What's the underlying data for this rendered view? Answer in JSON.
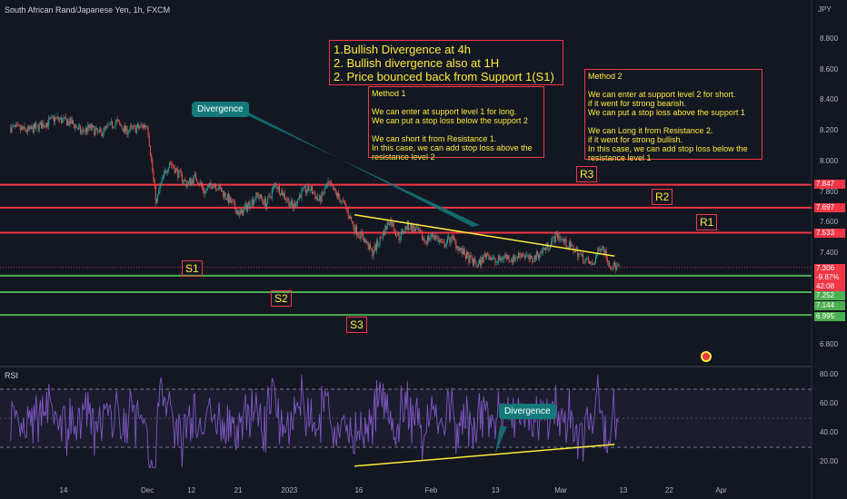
{
  "header": {
    "symbol": "South African Rand/Japanese Yen, 1h, FXCM",
    "currency": "JPY"
  },
  "rsi": {
    "label": "RSI"
  },
  "annotations": {
    "main_box": "1.Bullish Divergence at 4h\n2. Bullish divergence also at 1H\n2. Price bounced back from Support 1(S1)",
    "method1": "Method 1\n\nWe can enter at support level 1 for long.\nWe can put a stop loss below the support 2\n\nWe can short it from Resistance 1.\nIn this case, we can add stop loss above the resistance level 2",
    "method2": "Method 2\n\nWe can enter at support level 2 for short.\nif it went for strong bearish.\nWe can put a stop loss above the support 1\n\nWe can Long it from Resistance 2.\nif it went for strong bullish.\nIn this case, we can add stop loss below the resistance level 1",
    "divergence_price": "Divergence",
    "divergence_rsi": "Divergence",
    "levels": {
      "R1": "R1",
      "R2": "R2",
      "R3": "R3",
      "S1": "S1",
      "S2": "S2",
      "S3": "S3"
    }
  },
  "price_tags": {
    "r3": "7.847",
    "r2": "7.697",
    "r1": "7.533",
    "current": "7.306",
    "change": "-9.87%",
    "countdown": "42:08",
    "s1": "7.252",
    "s2": "7.144",
    "s3": "6.995"
  },
  "colors": {
    "up": "#26a69a",
    "down": "#ef5350",
    "resistance": "#f23645",
    "support": "#4caf50",
    "rsi": "#7e57c2",
    "trend": "#ffeb3b",
    "background": "#131722"
  },
  "icons": {
    "calendar": "economic-event-icon"
  },
  "chart_data": [
    {
      "type": "candlestick",
      "title": "South African Rand/Japanese Yen, 1h, FXCM",
      "ylabel": "JPY",
      "ylim": [
        6.72,
        9.0
      ],
      "y_ticks": [
        8.8,
        8.6,
        8.4,
        8.2,
        8.0,
        7.8,
        7.6,
        7.4,
        6.8
      ],
      "x_ticks": [
        "14",
        "Dec",
        "12",
        "21",
        "2023",
        "16",
        "Feb",
        "13",
        "Mar",
        "13",
        "22",
        "Apr"
      ],
      "x_tick_index": [
        0.0,
        9.5,
        14.5,
        19.8,
        25.6,
        33.5,
        41.7,
        49.0,
        56.4,
        63.5,
        68.7,
        74.6
      ],
      "bars_index_range": [
        0,
        64
      ],
      "close_path": [
        [
          -6,
          8.22
        ],
        [
          -4,
          8.2
        ],
        [
          -2,
          8.25
        ],
        [
          -1,
          8.28
        ],
        [
          1,
          8.25
        ],
        [
          2,
          8.19
        ],
        [
          3,
          8.22
        ],
        [
          4,
          8.18
        ],
        [
          5,
          8.22
        ],
        [
          6,
          8.26
        ],
        [
          7,
          8.2
        ],
        [
          8.5,
          8.22
        ],
        [
          9.5,
          8.24
        ],
        [
          10,
          7.98
        ],
        [
          10.5,
          7.72
        ],
        [
          11,
          7.85
        ],
        [
          11.5,
          7.92
        ],
        [
          12,
          8.0
        ],
        [
          13,
          7.92
        ],
        [
          14,
          7.85
        ],
        [
          15,
          7.9
        ],
        [
          16,
          7.8
        ],
        [
          17,
          7.86
        ],
        [
          18,
          7.8
        ],
        [
          19,
          7.73
        ],
        [
          20,
          7.65
        ],
        [
          21,
          7.72
        ],
        [
          22,
          7.78
        ],
        [
          23,
          7.72
        ],
        [
          24,
          7.85
        ],
        [
          25,
          7.78
        ],
        [
          26,
          7.7
        ],
        [
          27,
          7.8
        ],
        [
          28,
          7.82
        ],
        [
          29,
          7.74
        ],
        [
          30,
          7.85
        ],
        [
          31,
          7.78
        ],
        [
          32,
          7.7
        ],
        [
          33,
          7.56
        ],
        [
          34,
          7.5
        ],
        [
          35,
          7.4
        ],
        [
          36,
          7.5
        ],
        [
          37,
          7.62
        ],
        [
          38,
          7.5
        ],
        [
          39,
          7.58
        ],
        [
          40,
          7.55
        ],
        [
          41,
          7.48
        ],
        [
          42,
          7.52
        ],
        [
          43,
          7.45
        ],
        [
          44,
          7.5
        ],
        [
          45,
          7.42
        ],
        [
          46,
          7.36
        ],
        [
          47,
          7.32
        ],
        [
          48,
          7.4
        ],
        [
          49,
          7.34
        ],
        [
          50,
          7.38
        ],
        [
          51,
          7.36
        ],
        [
          52,
          7.4
        ],
        [
          53,
          7.35
        ],
        [
          54,
          7.4
        ],
        [
          55,
          7.45
        ],
        [
          56,
          7.52
        ],
        [
          57,
          7.46
        ],
        [
          58,
          7.42
        ],
        [
          59,
          7.36
        ],
        [
          60,
          7.32
        ],
        [
          61,
          7.46
        ],
        [
          62,
          7.32
        ],
        [
          63,
          7.306
        ]
      ],
      "levels": [
        {
          "name": "R3",
          "value": 7.847,
          "kind": "resistance"
        },
        {
          "name": "R2",
          "value": 7.697,
          "kind": "resistance"
        },
        {
          "name": "R1",
          "value": 7.533,
          "kind": "resistance"
        },
        {
          "name": "S1",
          "value": 7.252,
          "kind": "support"
        },
        {
          "name": "S2",
          "value": 7.144,
          "kind": "support"
        },
        {
          "name": "S3",
          "value": 6.995,
          "kind": "support"
        }
      ],
      "trendline": {
        "from": [
          33,
          7.65
        ],
        "to": [
          62.5,
          7.38
        ]
      },
      "last": 7.306
    },
    {
      "type": "line",
      "title": "RSI",
      "ylim": [
        12,
        87
      ],
      "y_ticks": [
        80.0,
        60.0,
        40.0,
        20.0
      ],
      "bands": [
        30,
        70
      ],
      "trendline": {
        "from": [
          33,
          17
        ],
        "to": [
          62.5,
          32
        ]
      }
    }
  ]
}
